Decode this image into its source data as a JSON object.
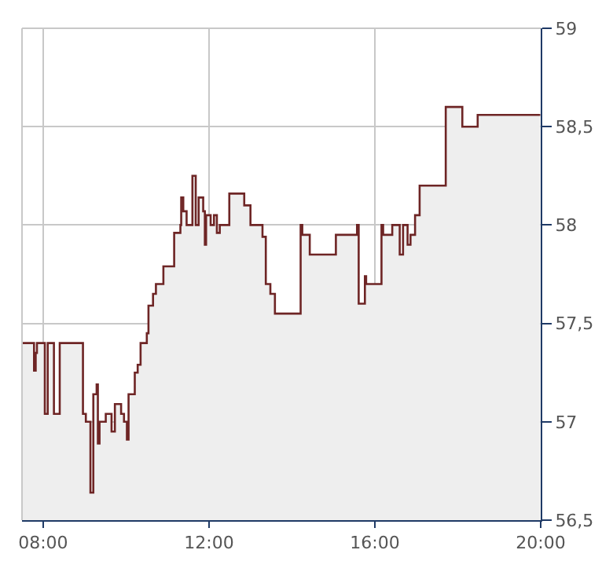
{
  "chart_data": {
    "type": "area",
    "x": [
      7.49,
      7.78,
      7.78,
      7.82,
      7.82,
      7.85,
      7.85,
      8.04,
      8.04,
      8.11,
      8.11,
      8.26,
      8.26,
      8.4,
      8.4,
      8.96,
      8.96,
      9.03,
      9.03,
      9.14,
      9.14,
      9.21,
      9.21,
      9.29,
      9.29,
      9.32,
      9.32,
      9.36,
      9.36,
      9.51,
      9.51,
      9.65,
      9.65,
      9.73,
      9.73,
      9.88,
      9.88,
      9.95,
      9.95,
      10.02,
      10.02,
      10.06,
      10.06,
      10.21,
      10.21,
      10.28,
      10.28,
      10.35,
      10.35,
      10.5,
      10.5,
      10.54,
      10.54,
      10.65,
      10.65,
      10.72,
      10.72,
      10.9,
      10.9,
      11.16,
      11.16,
      11.31,
      11.31,
      11.33,
      11.33,
      11.38,
      11.38,
      11.46,
      11.46,
      11.6,
      11.6,
      11.68,
      11.68,
      11.75,
      11.75,
      11.86,
      11.86,
      11.9,
      11.9,
      11.93,
      11.93,
      12.04,
      12.04,
      12.12,
      12.12,
      12.19,
      12.19,
      12.26,
      12.26,
      12.49,
      12.49,
      12.85,
      12.85,
      13.0,
      13.0,
      13.29,
      13.29,
      13.37,
      13.37,
      13.48,
      13.48,
      13.59,
      13.59,
      14.21,
      14.21,
      14.25,
      14.25,
      14.43,
      14.43,
      15.06,
      15.06,
      15.57,
      15.57,
      15.61,
      15.61,
      15.76,
      15.76,
      15.79,
      15.79,
      16.16,
      16.16,
      16.2,
      16.2,
      16.42,
      16.42,
      16.6,
      16.6,
      16.68,
      16.68,
      16.79,
      16.79,
      16.86,
      16.86,
      16.97,
      16.97,
      17.08,
      17.08,
      17.71,
      17.71,
      18.11,
      18.11,
      18.48,
      18.48,
      19.99
    ],
    "series": [
      {
        "color": "#6e2525",
        "values": [
          57.4,
          57.4,
          57.26,
          57.26,
          57.35,
          57.35,
          57.4,
          57.4,
          57.04,
          57.04,
          57.4,
          57.4,
          57.04,
          57.04,
          57.4,
          57.4,
          57.04,
          57.04,
          57.0,
          57.0,
          56.64,
          56.64,
          57.14,
          57.14,
          57.19,
          57.19,
          56.89,
          56.89,
          57.0,
          57.0,
          57.04,
          57.04,
          56.95,
          56.95,
          57.09,
          57.09,
          57.04,
          57.04,
          57.0,
          57.0,
          56.91,
          56.91,
          57.14,
          57.14,
          57.25,
          57.25,
          57.29,
          57.29,
          57.4,
          57.4,
          57.45,
          57.45,
          57.59,
          57.59,
          57.65,
          57.65,
          57.7,
          57.7,
          57.79,
          57.79,
          57.96,
          57.96,
          58.0,
          58.0,
          58.14,
          58.14,
          58.07,
          58.07,
          58.0,
          58.0,
          58.25,
          58.25,
          58.0,
          58.0,
          58.14,
          58.14,
          58.07,
          58.07,
          57.9,
          57.9,
          58.05,
          58.05,
          58.0,
          58.0,
          58.05,
          58.05,
          57.96,
          57.96,
          58.0,
          58.0,
          58.16,
          58.16,
          58.1,
          58.1,
          58.0,
          58.0,
          57.94,
          57.94,
          57.7,
          57.7,
          57.65,
          57.65,
          57.55,
          57.55,
          58.0,
          58.0,
          57.95,
          57.95,
          57.85,
          57.85,
          57.95,
          57.95,
          58.0,
          58.0,
          57.6,
          57.6,
          57.74,
          57.74,
          57.7,
          57.7,
          58.0,
          58.0,
          57.95,
          57.95,
          58.0,
          58.0,
          57.85,
          57.85,
          58.0,
          58.0,
          57.9,
          57.9,
          57.95,
          57.95,
          58.05,
          58.05,
          58.2,
          58.2,
          58.6,
          58.6,
          58.5,
          58.5,
          58.56,
          58.56
        ]
      }
    ],
    "xlim": [
      7.49,
      20
    ],
    "xticks": [
      {
        "value": 8,
        "label": "08:00"
      },
      {
        "value": 12,
        "label": "12:00"
      },
      {
        "value": 16,
        "label": "16:00"
      },
      {
        "value": 20,
        "label": "20:00"
      }
    ],
    "ylim": [
      56.5,
      59
    ],
    "yticks": [
      {
        "value": 56.5,
        "label": "56,5"
      },
      {
        "value": 57,
        "label": "57"
      },
      {
        "value": 57.5,
        "label": "57,5"
      },
      {
        "value": 58,
        "label": "58"
      },
      {
        "value": 58.5,
        "label": "58,5"
      },
      {
        "value": 59,
        "label": "59"
      }
    ],
    "grid": true,
    "marker": "none",
    "line_style": "solid"
  }
}
